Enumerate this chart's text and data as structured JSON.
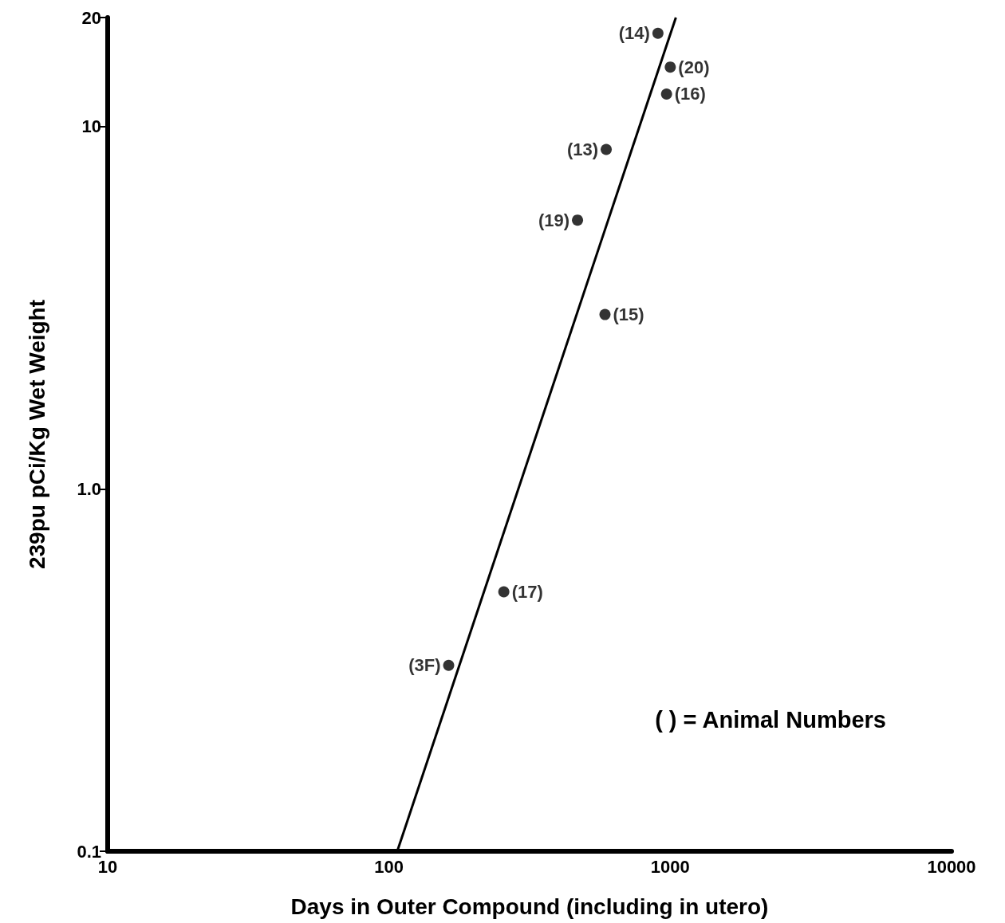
{
  "chart_data": {
    "type": "scatter",
    "xlabel": "Days in Outer Compound (including in utero)",
    "ylabel": "239pu pCi/Kg Wet Weight",
    "log": "xy",
    "grid": false,
    "xlim": [
      10,
      10000
    ],
    "xticks": [
      10,
      100,
      1000,
      10000
    ],
    "ylim": [
      0.1,
      20
    ],
    "yticks": [
      0.1,
      {
        "value": 1,
        "label": "1.0"
      },
      10,
      20
    ],
    "series": [
      {
        "color": "#000000",
        "marker": "circle",
        "x": [
          904,
          1000,
          970,
          592,
          468,
          586,
          256,
          163
        ],
        "values": [
          18.1,
          14.6,
          12.3,
          8.65,
          5.52,
          3.03,
          0.52,
          0.326
        ]
      },
      {
        "type": "line",
        "color": "#000000",
        "marker": "none",
        "x": [
          107,
          1047
        ],
        "values": [
          0.1,
          20
        ]
      }
    ],
    "annotations": [
      {
        "text": "(14)",
        "x": 904,
        "y": 18.1
      },
      {
        "text": "(20)",
        "x": 1000,
        "y": 14.6
      },
      {
        "text": "(16)",
        "x": 970,
        "y": 12.3
      },
      {
        "text": "(13)",
        "x": 592,
        "y": 8.65
      },
      {
        "text": "(19)",
        "x": 468,
        "y": 5.52
      },
      {
        "text": "(15)",
        "x": 586,
        "y": 3.03
      },
      {
        "text": "(17)",
        "x": 256,
        "y": 0.52
      },
      {
        "text": "(3F)",
        "x": 163,
        "y": 0.326
      },
      "( ) = Animal Numbers"
    ]
  }
}
